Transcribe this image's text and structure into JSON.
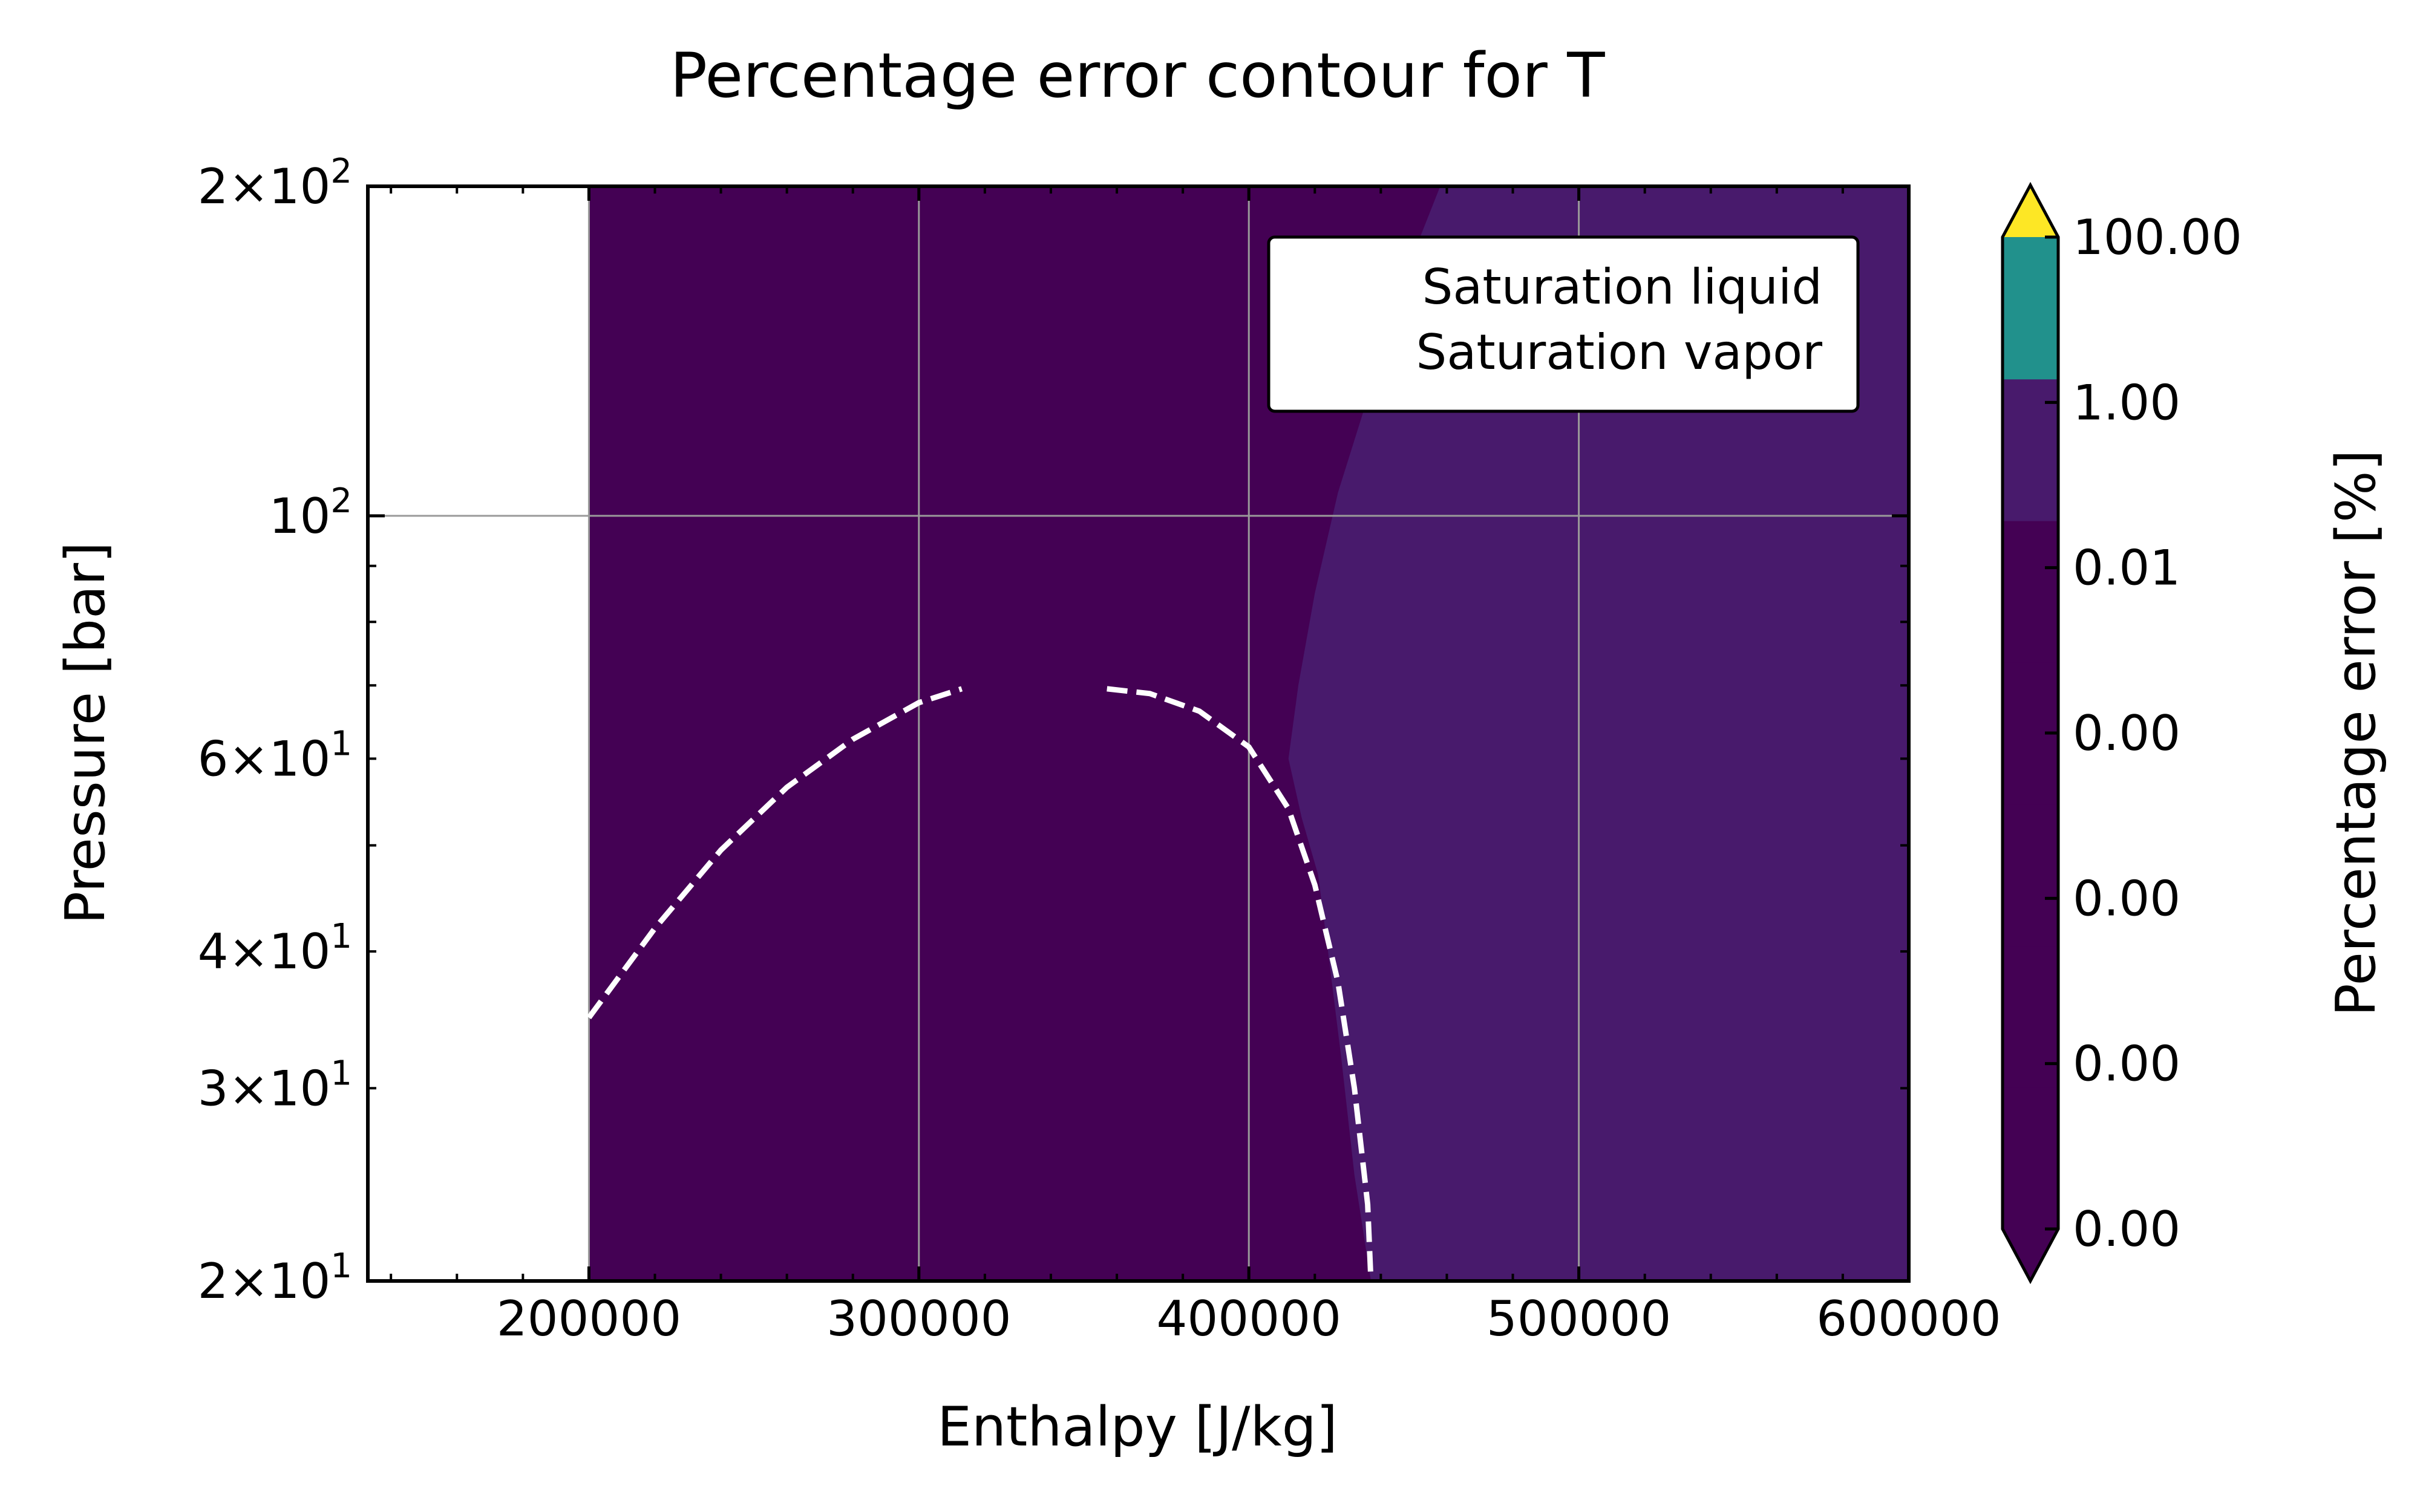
{
  "chart_data": {
    "type": "contour",
    "title": "Percentage error contour for T",
    "xlabel": "Enthalpy [J/kg]",
    "ylabel": "Pressure [bar]",
    "x_range": [
      133000,
      600000
    ],
    "y_range": [
      20,
      200
    ],
    "y_scale": "log",
    "grid": true,
    "x_ticks": [
      {
        "value": 200000,
        "label": "200000"
      },
      {
        "value": 300000,
        "label": "300000"
      },
      {
        "value": 400000,
        "label": "400000"
      },
      {
        "value": 500000,
        "label": "500000"
      },
      {
        "value": 600000,
        "label": "600000"
      }
    ],
    "y_ticks": [
      {
        "value": 20,
        "base": "2×10",
        "exp": "1"
      },
      {
        "value": 30,
        "base": "3×10",
        "exp": "1"
      },
      {
        "value": 40,
        "base": "4×10",
        "exp": "1"
      },
      {
        "value": 60,
        "base": "6×10",
        "exp": "1"
      },
      {
        "value": 100,
        "base": "10",
        "exp": "2"
      },
      {
        "value": 200,
        "base": "2×10",
        "exp": "2"
      }
    ],
    "regions": [
      {
        "level": "0.00–0.01 %",
        "color": "#440154",
        "x_from": 200000,
        "x_to": 600000,
        "y_from": 20,
        "y_to": 200
      },
      {
        "level": "0.01–1.00 %",
        "color": "#481a6c",
        "boundary": [
          [
            437000,
            20
          ],
          [
            432000,
            25
          ],
          [
            428000,
            32
          ],
          [
            424000,
            40
          ],
          [
            421000,
            47
          ],
          [
            416000,
            53
          ],
          [
            412000,
            60
          ],
          [
            415000,
            70
          ],
          [
            420000,
            85
          ],
          [
            427000,
            105
          ],
          [
            440000,
            140
          ],
          [
            452000,
            180
          ],
          [
            458000,
            200
          ]
        ]
      }
    ],
    "series": [
      {
        "name": "Saturation liquid",
        "style": "dashed",
        "color": "#ffffff",
        "points": [
          [
            200000,
            34.8
          ],
          [
            220000,
            42
          ],
          [
            240000,
            49.5
          ],
          [
            260000,
            56.5
          ],
          [
            280000,
            62.5
          ],
          [
            300000,
            67.5
          ],
          [
            313000,
            69.5
          ]
        ]
      },
      {
        "name": "Saturation vapor",
        "style": "dashed",
        "color": "#ffffff",
        "points": [
          [
            357000,
            69.5
          ],
          [
            370000,
            68.8
          ],
          [
            385000,
            66.3
          ],
          [
            400000,
            61.5
          ],
          [
            412000,
            54
          ],
          [
            420000,
            46
          ],
          [
            427000,
            37.5
          ],
          [
            432000,
            30
          ],
          [
            436000,
            23.5
          ],
          [
            437000,
            20
          ]
        ]
      }
    ],
    "legend": {
      "placement": "top-right",
      "entries": [
        "Saturation liquid",
        "Saturation vapor"
      ]
    },
    "colorbar": {
      "label": "Percentage error [%]",
      "tick_labels": [
        "0.00",
        "0.00",
        "0.00",
        "0.00",
        "0.01",
        "1.00",
        "100.00"
      ],
      "bands": [
        "#440154",
        "#440154",
        "#440154",
        "#440154",
        "#440154",
        "#481a6c",
        "#21918c"
      ],
      "extend_min_color": "#440154",
      "extend_max_color": "#fde725"
    }
  }
}
